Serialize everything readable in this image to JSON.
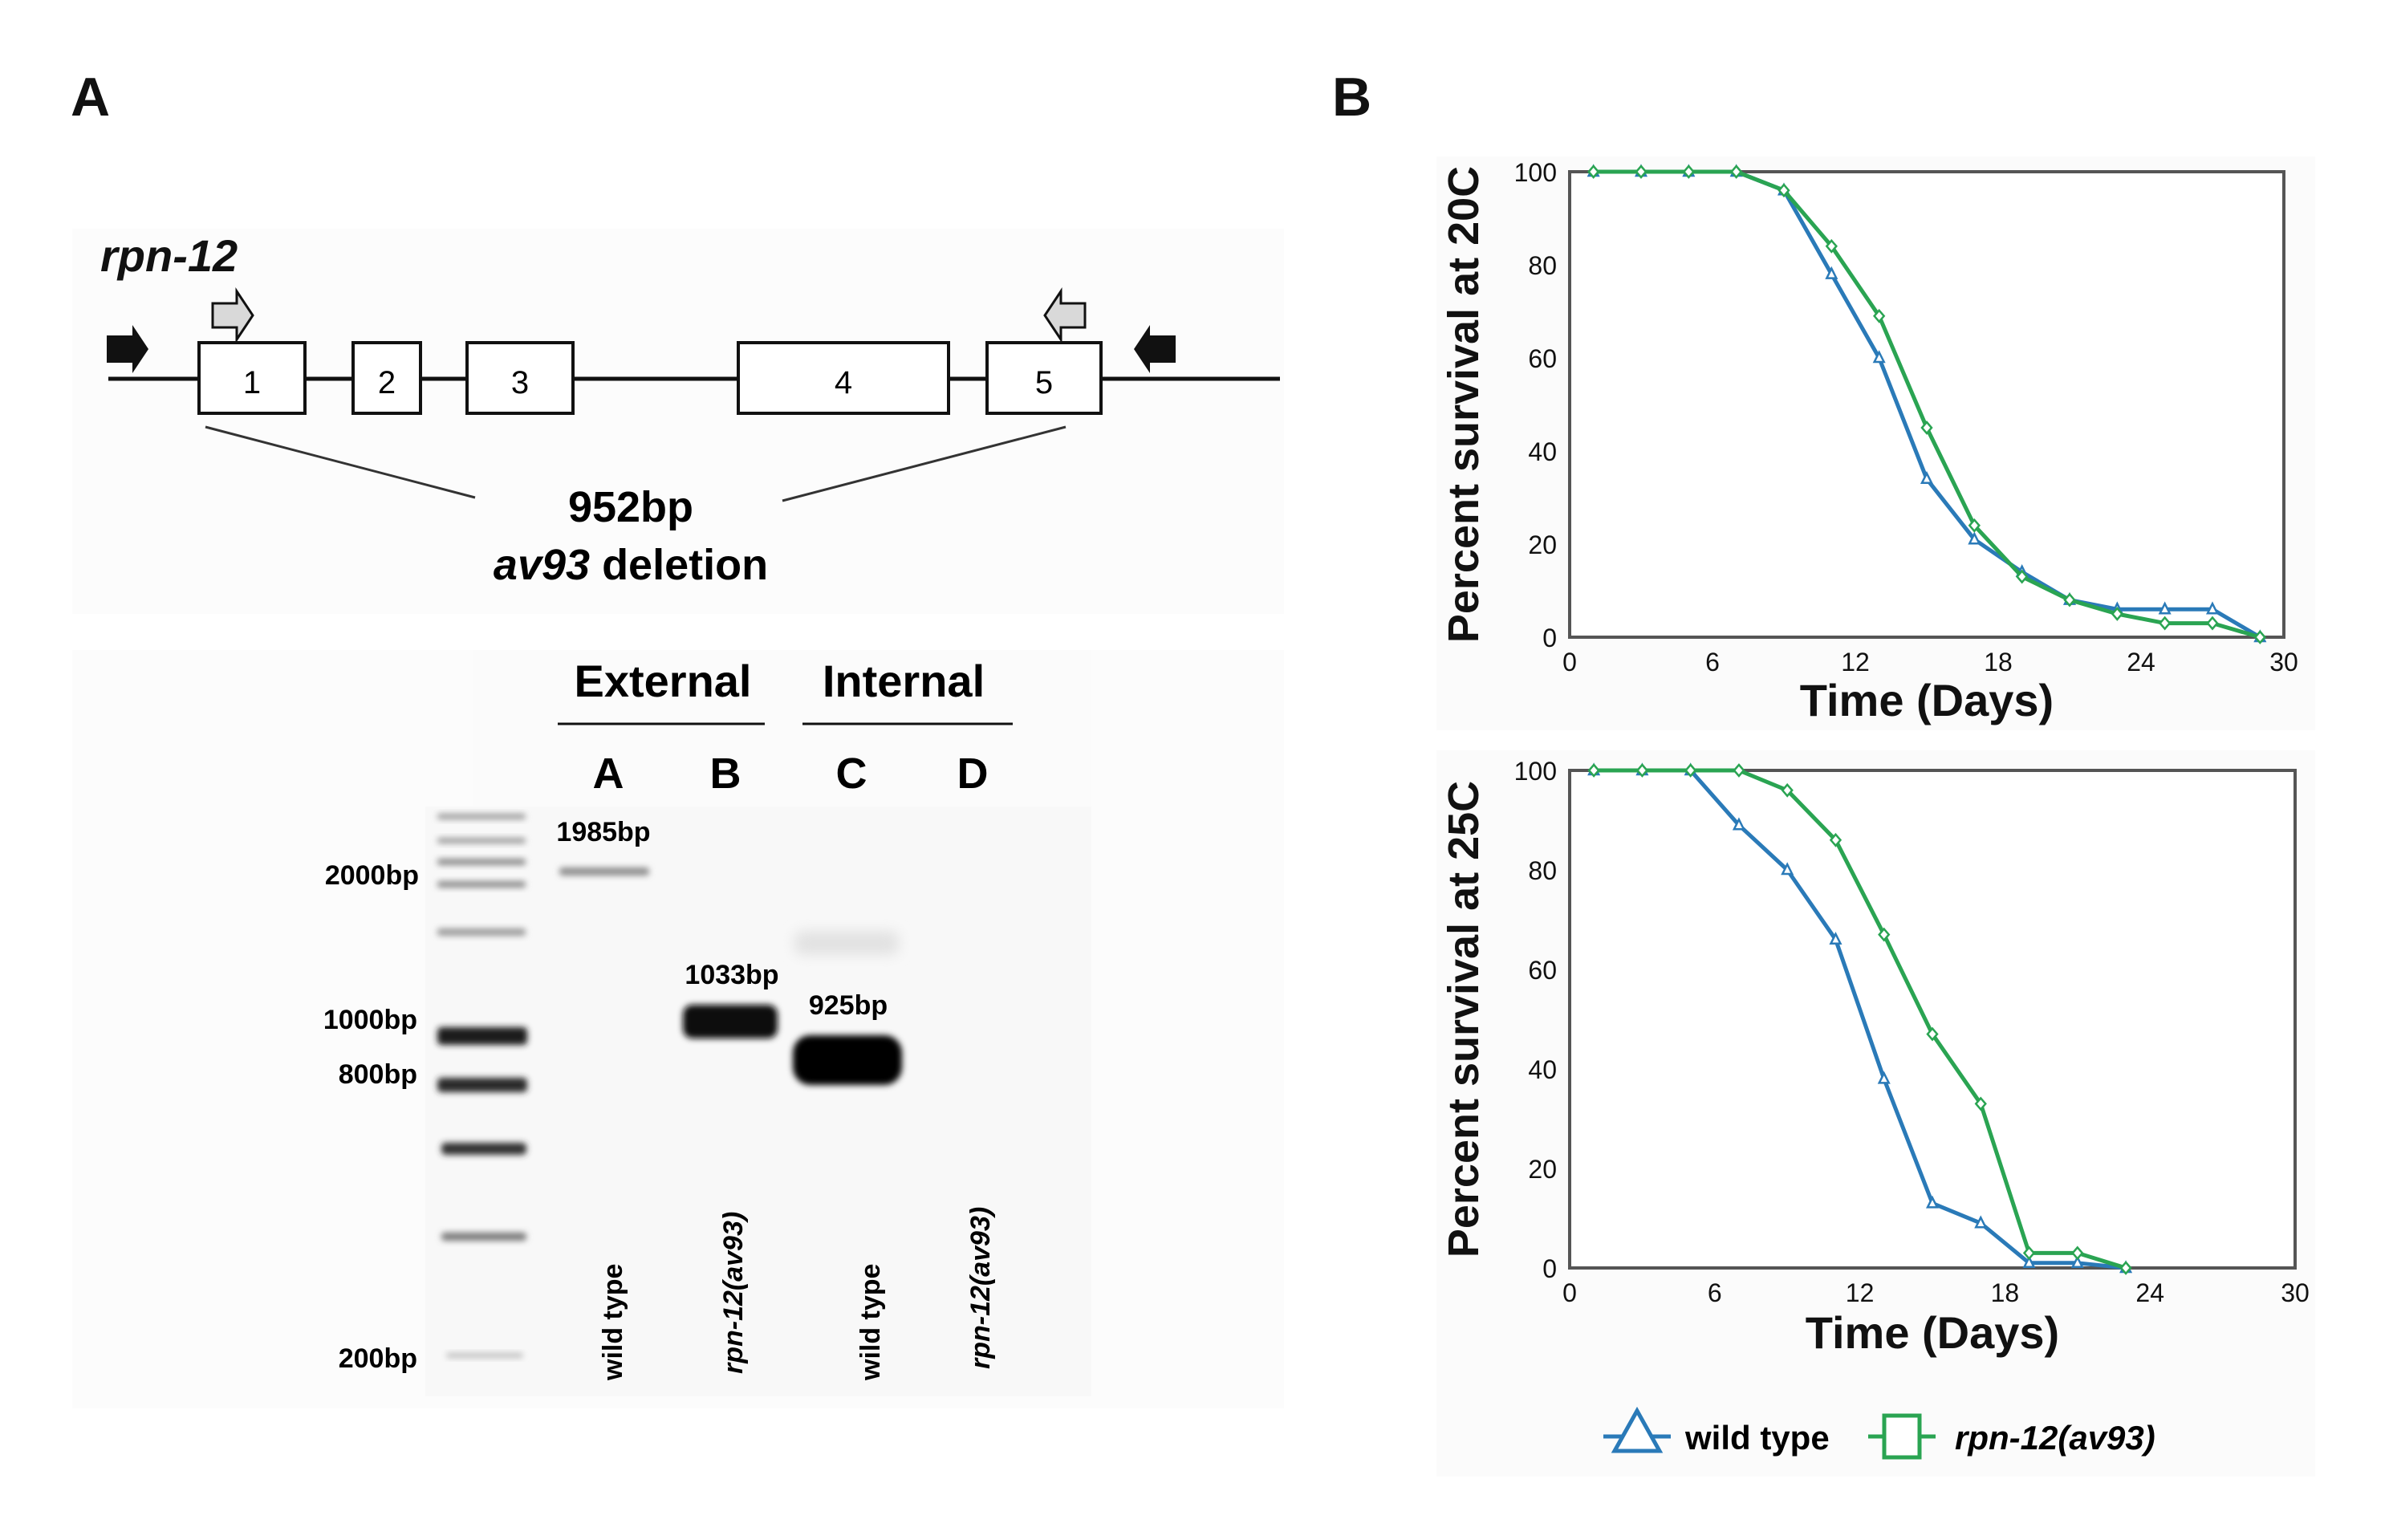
{
  "panelA": {
    "letter": "A",
    "gene": {
      "name": "rpn-12",
      "exons": [
        "1",
        "2",
        "3",
        "4",
        "5"
      ],
      "deletion_size": "952bp",
      "deletion_allele": "av93",
      "deletion_word": "deletion"
    },
    "gel": {
      "group_labels": [
        "External",
        "Internal"
      ],
      "lane_letters": [
        "A",
        "B",
        "C",
        "D"
      ],
      "ladder_labels": [
        "2000bp",
        "1000bp",
        "800bp",
        "200bp"
      ],
      "band_labels": [
        "1985bp",
        "1033bp",
        "925bp"
      ],
      "lane_genotypes": [
        "wild type",
        "rpn-12(av93)",
        "wild type",
        "rpn-12(av93)"
      ]
    }
  },
  "panelB": {
    "letter": "B",
    "legend": {
      "wildtype": "wild type",
      "mutant": "rpn-12(av93)"
    },
    "colors": {
      "wildtype": "#2a7ab8",
      "mutant": "#2aa452"
    }
  },
  "chart_data": [
    {
      "type": "line",
      "title": "",
      "ylabel": "Percent survival at 20C",
      "xlabel": "Time (Days)",
      "xlim": [
        0,
        30
      ],
      "ylim": [
        0,
        100
      ],
      "xticks": [
        0,
        6,
        12,
        18,
        24,
        30
      ],
      "yticks": [
        0,
        20,
        40,
        60,
        80,
        100
      ],
      "series": [
        {
          "name": "wild type",
          "marker": "triangle",
          "x": [
            1,
            3,
            5,
            7,
            9,
            11,
            13,
            15,
            17,
            19,
            21,
            23,
            25,
            27,
            29
          ],
          "y": [
            100,
            100,
            100,
            100,
            96,
            78,
            60,
            34,
            21,
            14,
            8,
            6,
            6,
            6,
            0
          ]
        },
        {
          "name": "rpn-12(av93)",
          "marker": "diamond",
          "x": [
            1,
            3,
            5,
            7,
            9,
            11,
            13,
            15,
            17,
            19,
            21,
            23,
            25,
            27,
            29
          ],
          "y": [
            100,
            100,
            100,
            100,
            96,
            84,
            69,
            45,
            24,
            13,
            8,
            5,
            3,
            3,
            0
          ]
        }
      ]
    },
    {
      "type": "line",
      "title": "",
      "ylabel": "Percent survival at 25C",
      "xlabel": "Time (Days)",
      "xlim": [
        0,
        30
      ],
      "ylim": [
        0,
        100
      ],
      "xticks": [
        0,
        6,
        12,
        18,
        24,
        30
      ],
      "yticks": [
        0,
        20,
        40,
        60,
        80,
        100
      ],
      "series": [
        {
          "name": "wild type",
          "marker": "triangle",
          "x": [
            1,
            3,
            5,
            7,
            9,
            11,
            13,
            15,
            17,
            19,
            21,
            23
          ],
          "y": [
            100,
            100,
            100,
            89,
            80,
            66,
            38,
            13,
            9,
            1,
            1,
            0
          ]
        },
        {
          "name": "rpn-12(av93)",
          "marker": "diamond",
          "x": [
            1,
            3,
            5,
            7,
            9,
            11,
            13,
            15,
            17,
            19,
            21,
            23
          ],
          "y": [
            100,
            100,
            100,
            100,
            96,
            86,
            67,
            47,
            33,
            3,
            3,
            0
          ]
        }
      ]
    }
  ]
}
